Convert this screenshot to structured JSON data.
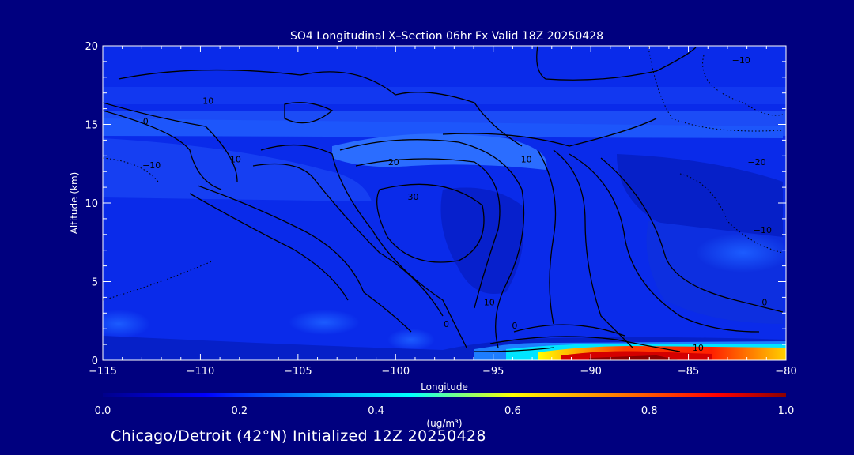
{
  "chart_data": {
    "type": "heatmap",
    "title": "SO4 Longitudinal X–Section 06hr  Fx Valid 18Z 20250428",
    "xlabel": "Longitude",
    "ylabel": "Altitude (km)",
    "xlim": [
      -115,
      -80
    ],
    "ylim": [
      0,
      20
    ],
    "x_ticks": [
      -115,
      -110,
      -105,
      -100,
      -95,
      -90,
      -85,
      -80
    ],
    "x_tick_labels": [
      "−115",
      "−110",
      "−105",
      "−100",
      "−95",
      "−90",
      "−85",
      "−80"
    ],
    "y_ticks": [
      0,
      5,
      10,
      15,
      20
    ],
    "y_tick_labels": [
      "0",
      "5",
      "10",
      "15",
      "20"
    ],
    "colorbar": {
      "min": 0.0,
      "max": 1.0,
      "ticks": [
        0.0,
        0.2,
        0.4,
        0.6,
        0.8,
        1.0
      ],
      "tick_labels": [
        "0.0",
        "0.2",
        "0.4",
        "0.6",
        "0.8",
        "1.0"
      ],
      "units": "(ug/m³)",
      "colors": [
        "#00008b",
        "#0000ff",
        "#00bfff",
        "#00ffff",
        "#ffff00",
        "#ff8000",
        "#ff0000",
        "#8b0000"
      ]
    },
    "contour_labels": [
      {
        "text": "0",
        "lon": -112.8,
        "alt": 15.0
      },
      {
        "text": "−10",
        "lon": -112.5,
        "alt": 12.2
      },
      {
        "text": "10",
        "lon": -109.6,
        "alt": 16.3
      },
      {
        "text": "10",
        "lon": -108.2,
        "alt": 12.6
      },
      {
        "text": "20",
        "lon": -100.1,
        "alt": 12.4
      },
      {
        "text": "30",
        "lon": -99.1,
        "alt": 10.2
      },
      {
        "text": "10",
        "lon": -93.3,
        "alt": 12.6
      },
      {
        "text": "−10",
        "lon": -82.3,
        "alt": 18.9
      },
      {
        "text": "−20",
        "lon": -81.5,
        "alt": 12.4
      },
      {
        "text": "−10",
        "lon": -81.2,
        "alt": 8.1
      },
      {
        "text": "0",
        "lon": -81.1,
        "alt": 3.5
      },
      {
        "text": "10",
        "lon": -95.2,
        "alt": 3.5
      },
      {
        "text": "0",
        "lon": -97.4,
        "alt": 2.1
      },
      {
        "text": "0",
        "lon": -93.9,
        "alt": 2.0
      },
      {
        "text": "10",
        "lon": -84.5,
        "alt": 0.6
      }
    ],
    "grid": false
  },
  "footer_text": "Chicago/Detroit (42°N) Initialized 12Z 20250428"
}
